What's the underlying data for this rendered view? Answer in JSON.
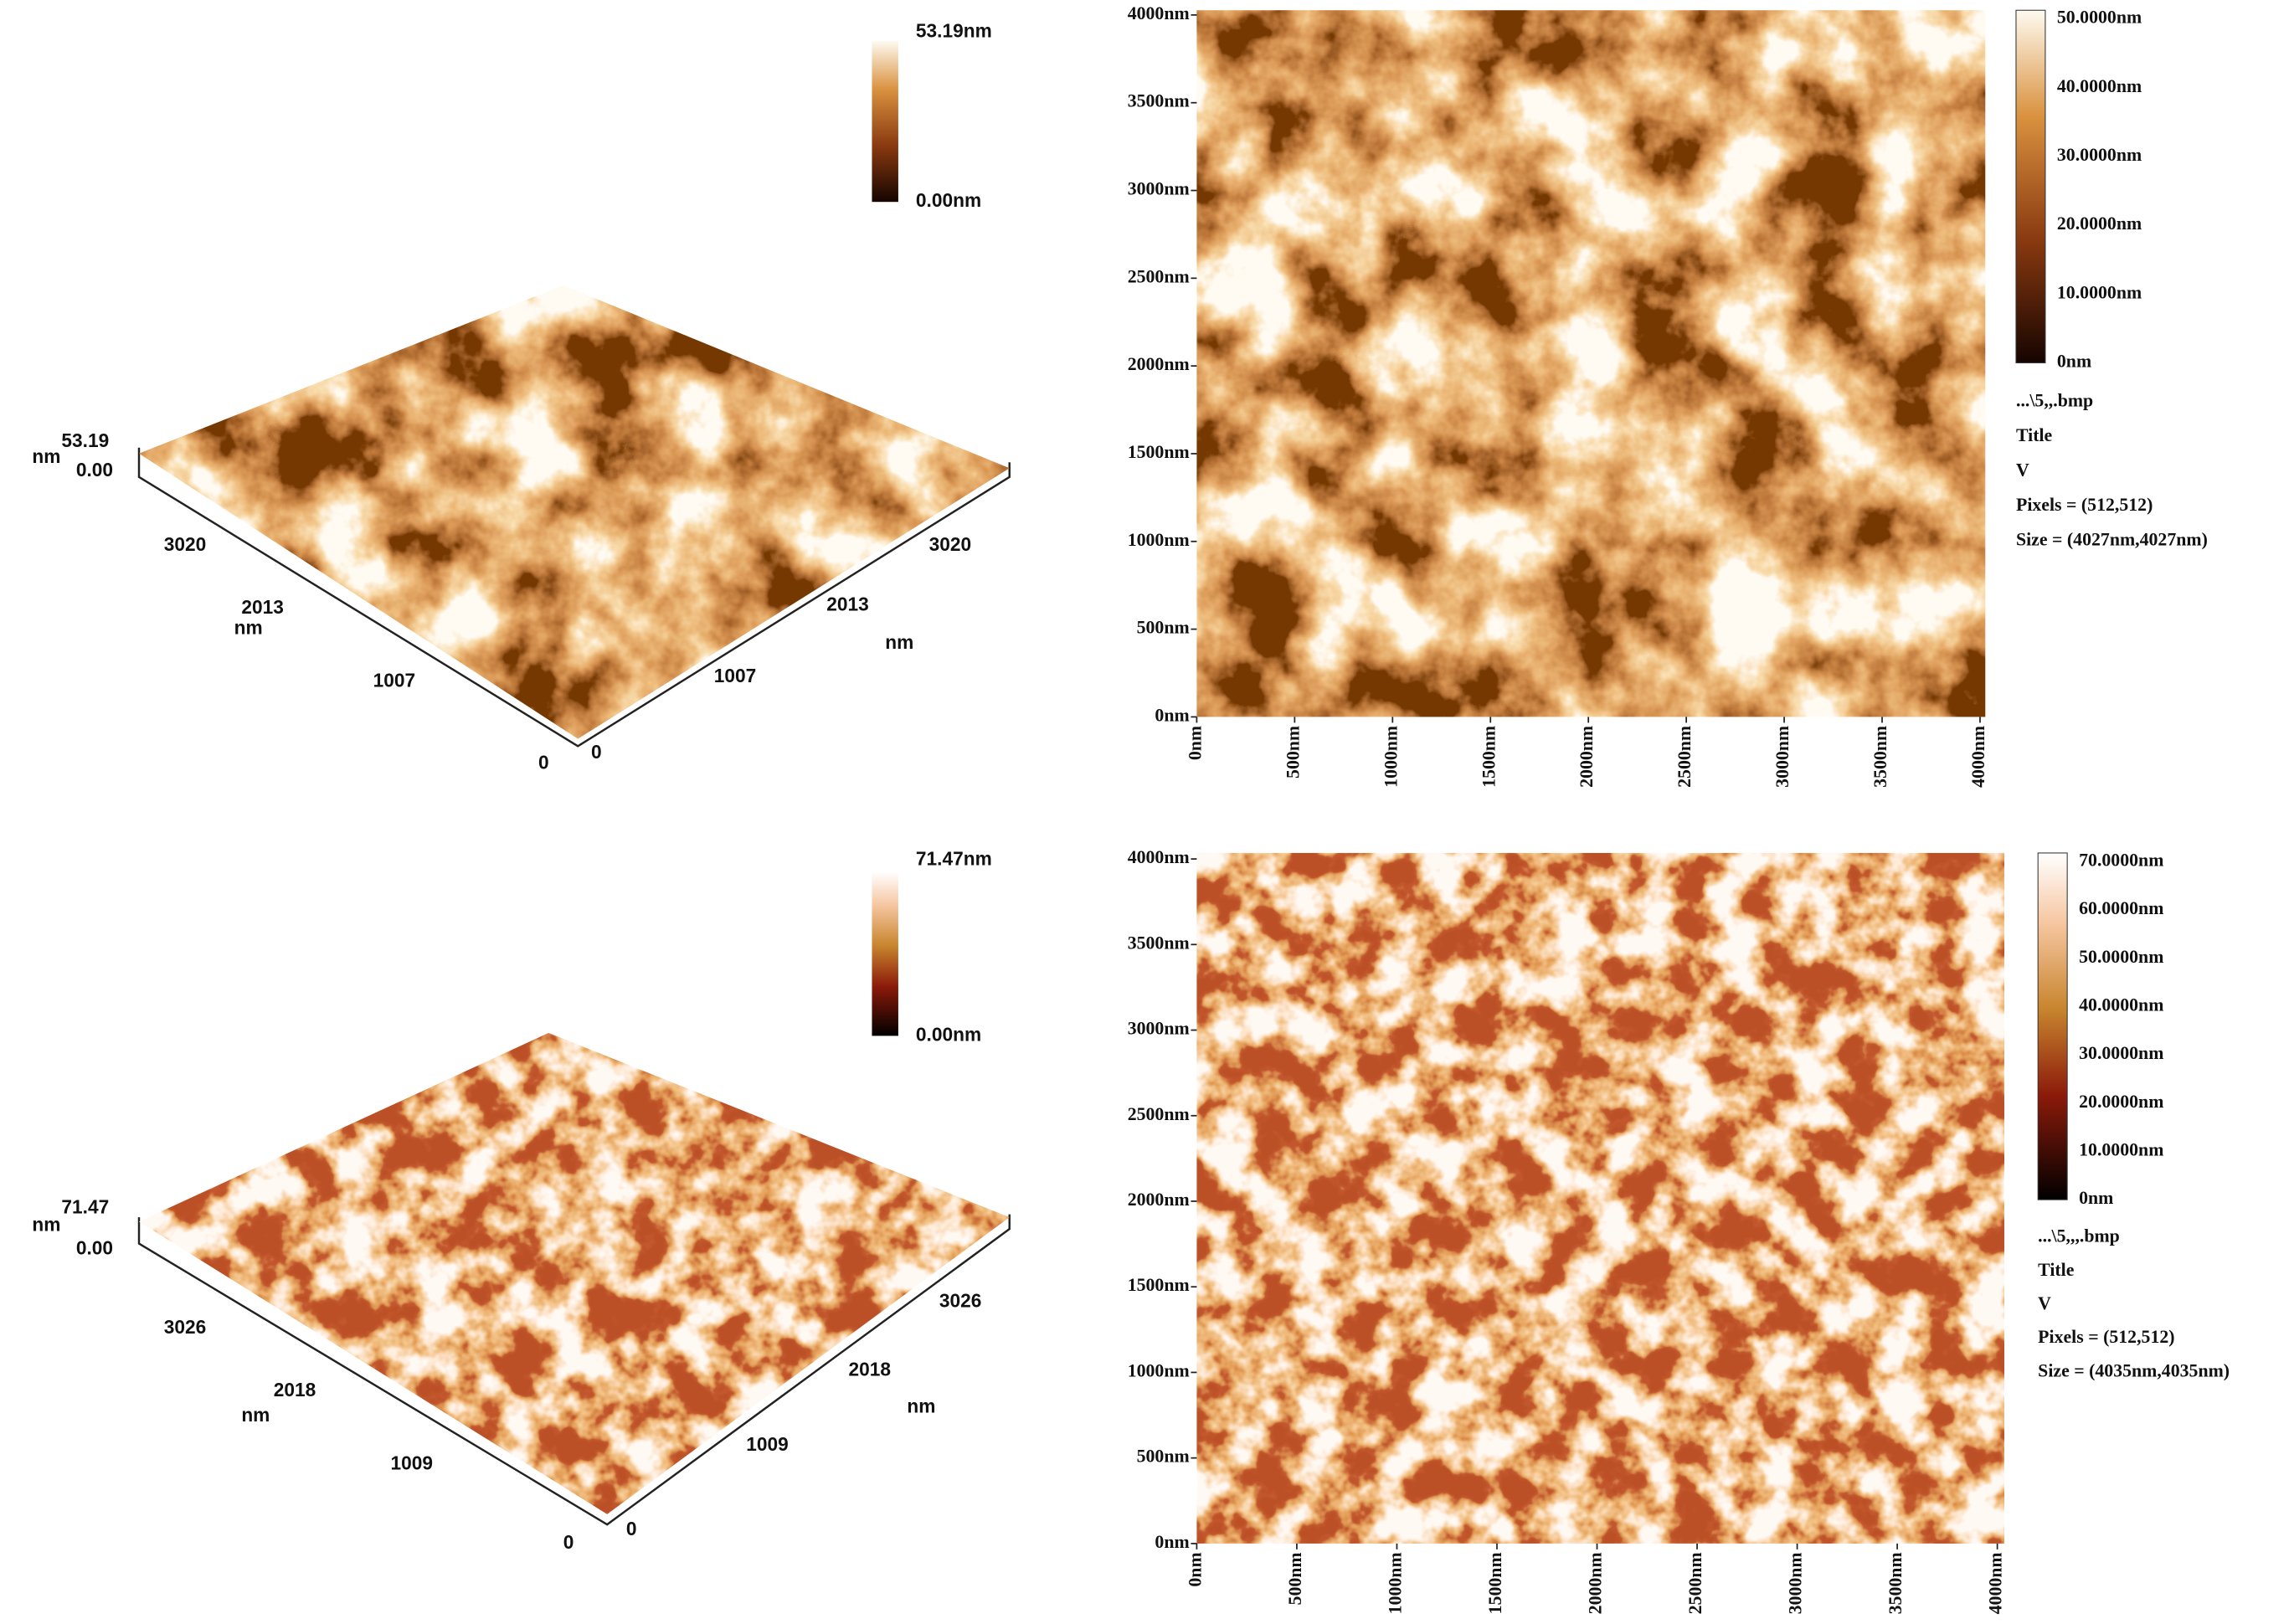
{
  "panels": [
    {
      "surface_3d": {
        "colorbar": {
          "max": "53.19nm",
          "min": "0.00nm"
        },
        "z_axis": {
          "unit": "nm",
          "top": "53.19",
          "bottom": "0.00"
        },
        "left_axis": {
          "ticks": [
            "3020",
            "2013",
            "1007",
            "0"
          ],
          "unit": "nm"
        },
        "right_axis": {
          "ticks": [
            "0",
            "1007",
            "2013",
            "3020"
          ],
          "unit": "nm"
        }
      },
      "height_map": {
        "y_ticks": [
          "4000nm",
          "3500nm",
          "3000nm",
          "2500nm",
          "2000nm",
          "1500nm",
          "1000nm",
          "500nm",
          "0nm"
        ],
        "x_ticks": [
          "0nm",
          "500nm",
          "1000nm",
          "1500nm",
          "2000nm",
          "2500nm",
          "3000nm",
          "3500nm",
          "4000nm"
        ],
        "colorbar_ticks": [
          "50.0000nm",
          "40.0000nm",
          "30.0000nm",
          "20.0000nm",
          "10.0000nm",
          "0nm"
        ],
        "info": [
          "...\\5,,.bmp",
          "Title",
          "V",
          "Pixels = (512,512)",
          "Size = (4027nm,4027nm)"
        ]
      }
    },
    {
      "surface_3d": {
        "colorbar": {
          "max": "71.47nm",
          "min": "0.00nm"
        },
        "z_axis": {
          "unit": "nm",
          "top": "71.47",
          "bottom": "0.00"
        },
        "left_axis": {
          "ticks": [
            "3026",
            "2018",
            "1009",
            "0"
          ],
          "unit": "nm"
        },
        "right_axis": {
          "ticks": [
            "0",
            "1009",
            "2018",
            "3026"
          ],
          "unit": "nm"
        }
      },
      "height_map": {
        "y_ticks": [
          "4000nm",
          "3500nm",
          "3000nm",
          "2500nm",
          "2000nm",
          "1500nm",
          "1000nm",
          "500nm",
          "0nm"
        ],
        "x_ticks": [
          "0nm",
          "500nm",
          "1000nm",
          "1500nm",
          "2000nm",
          "2500nm",
          "3000nm",
          "3500nm",
          "4000nm"
        ],
        "colorbar_ticks": [
          "70.0000nm",
          "60.0000nm",
          "50.0000nm",
          "40.0000nm",
          "30.0000nm",
          "20.0000nm",
          "10.0000nm",
          "0nm"
        ],
        "info": [
          "...\\5,,,.bmp",
          "Title",
          "V",
          "Pixels = (512,512)",
          "Size = (4035nm,4035nm)"
        ]
      }
    }
  ]
}
